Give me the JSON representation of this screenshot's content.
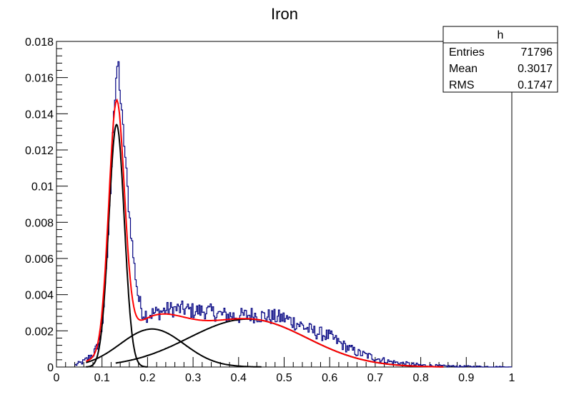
{
  "chart_data": {
    "type": "histogram",
    "title": "Iron",
    "xlabel": "",
    "ylabel": "",
    "xlim": [
      0,
      1
    ],
    "ylim": [
      0,
      0.018
    ],
    "x_ticks": [
      "0",
      "0.1",
      "0.2",
      "0.3",
      "0.4",
      "0.5",
      "0.6",
      "0.7",
      "0.8",
      "0.9",
      "1"
    ],
    "y_ticks": [
      "0",
      "0.002",
      "0.004",
      "0.006",
      "0.008",
      "0.01",
      "0.012",
      "0.014",
      "0.016",
      "0.018"
    ],
    "stats_box": {
      "title": "h",
      "rows": [
        {
          "label": "Entries",
          "value": "71796"
        },
        {
          "label": "Mean",
          "value": "0.3017"
        },
        {
          "label": "RMS",
          "value": "0.1747"
        }
      ]
    },
    "histogram": {
      "name": "h",
      "color": "#000080",
      "bin_width": 0.0025,
      "points": [
        [
          0.04,
          0.0001
        ],
        [
          0.05,
          0.0002
        ],
        [
          0.06,
          0.0003
        ],
        [
          0.07,
          0.0005
        ],
        [
          0.08,
          0.0007
        ],
        [
          0.09,
          0.0011
        ],
        [
          0.1,
          0.0022
        ],
        [
          0.11,
          0.0055
        ],
        [
          0.12,
          0.0105
        ],
        [
          0.125,
          0.014
        ],
        [
          0.13,
          0.015
        ],
        [
          0.135,
          0.0172
        ],
        [
          0.14,
          0.015
        ],
        [
          0.15,
          0.012
        ],
        [
          0.16,
          0.0085
        ],
        [
          0.17,
          0.0058
        ],
        [
          0.18,
          0.0038
        ],
        [
          0.19,
          0.003
        ],
        [
          0.2,
          0.0029
        ],
        [
          0.22,
          0.003
        ],
        [
          0.25,
          0.0032
        ],
        [
          0.28,
          0.0032
        ],
        [
          0.3,
          0.0031
        ],
        [
          0.33,
          0.0031
        ],
        [
          0.36,
          0.0029
        ],
        [
          0.4,
          0.0028
        ],
        [
          0.43,
          0.0029
        ],
        [
          0.46,
          0.0028
        ],
        [
          0.5,
          0.0027
        ],
        [
          0.53,
          0.0024
        ],
        [
          0.56,
          0.002
        ],
        [
          0.6,
          0.0017
        ],
        [
          0.63,
          0.0012
        ],
        [
          0.66,
          0.0008
        ],
        [
          0.7,
          0.0005
        ],
        [
          0.73,
          0.0003
        ],
        [
          0.76,
          0.0002
        ],
        [
          0.8,
          0.0001
        ],
        [
          0.85,
          5e-05
        ],
        [
          0.9,
          3e-05
        ],
        [
          0.95,
          2e-05
        ],
        [
          1.0,
          0.0
        ]
      ]
    },
    "curves": [
      {
        "name": "total fit",
        "color": "#ff0000",
        "x_range": [
          0.065,
          0.85
        ],
        "components": [
          {
            "mean": 0.132,
            "sigma": 0.017,
            "amp": 0.0134
          },
          {
            "mean": 0.21,
            "sigma": 0.07,
            "amp": 0.0021
          },
          {
            "mean": 0.42,
            "sigma": 0.13,
            "amp": 0.00265
          }
        ]
      },
      {
        "name": "component 1",
        "color": "#000000",
        "x_range": [
          0.065,
          0.2
        ],
        "components": [
          {
            "mean": 0.132,
            "sigma": 0.017,
            "amp": 0.0134
          }
        ]
      },
      {
        "name": "component 2",
        "color": "#000000",
        "x_range": [
          0.065,
          0.45
        ],
        "components": [
          {
            "mean": 0.21,
            "sigma": 0.07,
            "amp": 0.0021
          }
        ]
      },
      {
        "name": "component 3",
        "color": "#000000",
        "x_range": [
          0.13,
          0.85
        ],
        "components": [
          {
            "mean": 0.42,
            "sigma": 0.13,
            "amp": 0.00265
          }
        ]
      }
    ]
  }
}
